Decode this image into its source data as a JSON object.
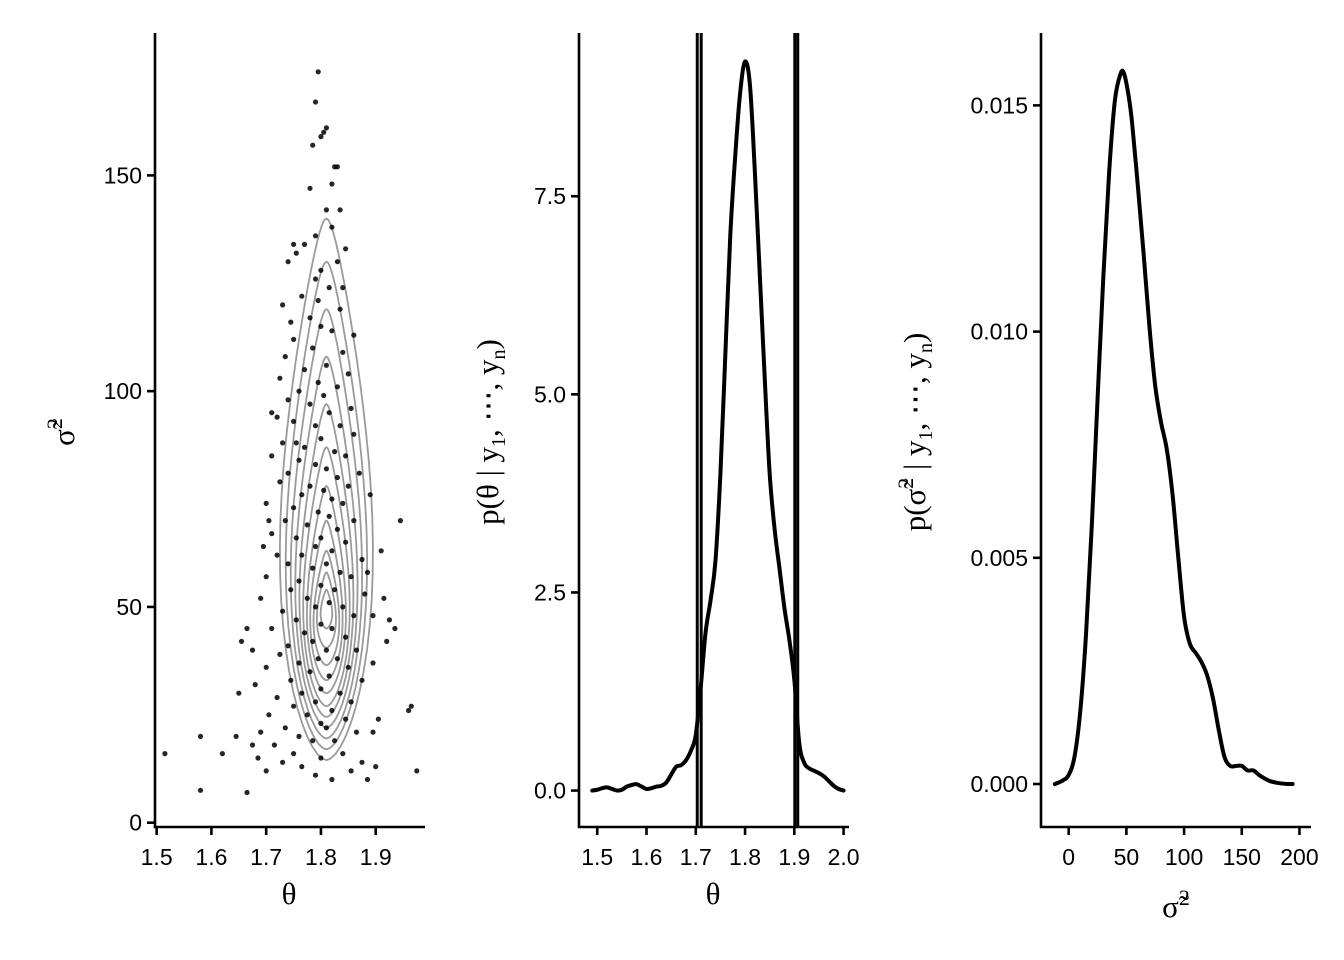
{
  "colors": {
    "points": "#000000",
    "contours": "#9a9a9a",
    "density": "#000000",
    "interval_lines": "#000000"
  },
  "chart_data": [
    {
      "type": "scatter",
      "xlabel": "θ",
      "ylabel": "σ̃²",
      "xlim": [
        1.497,
        1.99
      ],
      "ylim": [
        -1,
        183
      ],
      "xticks": [
        1.5,
        1.6,
        1.7,
        1.8,
        1.9
      ],
      "xtick_labels": [
        "1.5",
        "1.6",
        "1.7",
        "1.8",
        "1.9"
      ],
      "yticks": [
        0,
        50,
        100,
        150
      ],
      "ytick_labels": [
        "0",
        "50",
        "100",
        "150"
      ],
      "grid": false,
      "overlay": "2D density contours (grey)",
      "contour_rings": [
        {
          "cx": 1.81,
          "yb": 14.5,
          "yt": 140,
          "w": 0.112
        },
        {
          "cx": 1.81,
          "yb": 17,
          "yt": 130,
          "w": 0.098
        },
        {
          "cx": 1.81,
          "yb": 19.5,
          "yt": 119,
          "w": 0.086
        },
        {
          "cx": 1.81,
          "yb": 22,
          "yt": 108,
          "w": 0.075
        },
        {
          "cx": 1.81,
          "yb": 24.5,
          "yt": 97,
          "w": 0.065
        },
        {
          "cx": 1.81,
          "yb": 27,
          "yt": 87,
          "w": 0.056
        },
        {
          "cx": 1.81,
          "yb": 30,
          "yt": 78,
          "w": 0.047
        },
        {
          "cx": 1.81,
          "yb": 33,
          "yt": 70,
          "w": 0.039
        },
        {
          "cx": 1.81,
          "yb": 36.5,
          "yt": 63,
          "w": 0.031
        },
        {
          "cx": 1.81,
          "yb": 40.5,
          "yt": 58,
          "w": 0.023
        },
        {
          "cx": 1.81,
          "yb": 45,
          "yt": 54,
          "w": 0.014
        }
      ],
      "points": [
        [
          1.795,
          174
        ],
        [
          1.79,
          167
        ],
        [
          1.81,
          161
        ],
        [
          1.805,
          160
        ],
        [
          1.8,
          159
        ],
        [
          1.785,
          157
        ],
        [
          1.83,
          152
        ],
        [
          1.825,
          152
        ],
        [
          1.82,
          148
        ],
        [
          1.78,
          147
        ],
        [
          1.835,
          142
        ],
        [
          1.81,
          142
        ],
        [
          1.82,
          138
        ],
        [
          1.79,
          136
        ],
        [
          1.77,
          134
        ],
        [
          1.75,
          134
        ],
        [
          1.845,
          133
        ],
        [
          1.755,
          132
        ],
        [
          1.74,
          130
        ],
        [
          1.83,
          130
        ],
        [
          1.8,
          128
        ],
        [
          1.79,
          126
        ],
        [
          1.815,
          124
        ],
        [
          1.84,
          124
        ],
        [
          1.765,
          122
        ],
        [
          1.795,
          121
        ],
        [
          1.73,
          120
        ],
        [
          1.835,
          119
        ],
        [
          1.78,
          117
        ],
        [
          1.745,
          116
        ],
        [
          1.8,
          115
        ],
        [
          1.82,
          114
        ],
        [
          1.86,
          113
        ],
        [
          1.75,
          112
        ],
        [
          1.785,
          110
        ],
        [
          1.84,
          109
        ],
        [
          1.735,
          108
        ],
        [
          1.81,
          106
        ],
        [
          1.77,
          105
        ],
        [
          1.85,
          104
        ],
        [
          1.725,
          103
        ],
        [
          1.795,
          102
        ],
        [
          1.83,
          101
        ],
        [
          1.76,
          100
        ],
        [
          1.805,
          99
        ],
        [
          1.74,
          98
        ],
        [
          1.78,
          97
        ],
        [
          1.855,
          96
        ],
        [
          1.815,
          95
        ],
        [
          1.72,
          94
        ],
        [
          1.75,
          93
        ],
        [
          1.79,
          92
        ],
        [
          1.835,
          92
        ],
        [
          1.86,
          90
        ],
        [
          1.8,
          89
        ],
        [
          1.73,
          88
        ],
        [
          1.77,
          87
        ],
        [
          1.825,
          86
        ],
        [
          1.71,
          85
        ],
        [
          1.845,
          85
        ],
        [
          1.76,
          84
        ],
        [
          1.79,
          83
        ],
        [
          1.81,
          82
        ],
        [
          1.74,
          81
        ],
        [
          1.87,
          81
        ],
        [
          1.83,
          80
        ],
        [
          1.725,
          79
        ],
        [
          1.78,
          78
        ],
        [
          1.85,
          78
        ],
        [
          1.805,
          77
        ],
        [
          1.765,
          76
        ],
        [
          1.82,
          75
        ],
        [
          1.7,
          74
        ],
        [
          1.84,
          74
        ],
        [
          1.75,
          73
        ],
        [
          1.795,
          72
        ],
        [
          1.815,
          71
        ],
        [
          1.735,
          70
        ],
        [
          1.86,
          70
        ],
        [
          1.945,
          70
        ],
        [
          1.775,
          69
        ],
        [
          1.83,
          68
        ],
        [
          1.71,
          67
        ],
        [
          1.8,
          66
        ],
        [
          1.755,
          66
        ],
        [
          1.845,
          65
        ],
        [
          1.79,
          64
        ],
        [
          1.82,
          63
        ],
        [
          1.72,
          62
        ],
        [
          1.765,
          62
        ],
        [
          1.875,
          61
        ],
        [
          1.81,
          60
        ],
        [
          1.74,
          60
        ],
        [
          1.785,
          59
        ],
        [
          1.835,
          58
        ],
        [
          1.7,
          57
        ],
        [
          1.855,
          57
        ],
        [
          1.76,
          56
        ],
        [
          1.8,
          55
        ],
        [
          1.825,
          54
        ],
        [
          1.745,
          54
        ],
        [
          1.88,
          53
        ],
        [
          1.775,
          52
        ],
        [
          1.69,
          52
        ],
        [
          1.815,
          51
        ],
        [
          1.79,
          50
        ],
        [
          1.84,
          50
        ],
        [
          1.73,
          49
        ],
        [
          1.86,
          48
        ],
        [
          1.755,
          47
        ],
        [
          1.925,
          47
        ],
        [
          1.8,
          46
        ],
        [
          1.82,
          45
        ],
        [
          1.71,
          45
        ],
        [
          1.77,
          44
        ],
        [
          1.845,
          43
        ],
        [
          1.785,
          42
        ],
        [
          1.655,
          42
        ],
        [
          1.74,
          41
        ],
        [
          1.81,
          40
        ],
        [
          1.865,
          40
        ],
        [
          1.725,
          39
        ],
        [
          1.795,
          38
        ],
        [
          1.83,
          38
        ],
        [
          1.76,
          37
        ],
        [
          1.7,
          36
        ],
        [
          1.85,
          36
        ],
        [
          1.78,
          35
        ],
        [
          1.815,
          34
        ],
        [
          1.745,
          33
        ],
        [
          1.875,
          33
        ],
        [
          1.68,
          32
        ],
        [
          1.8,
          31
        ],
        [
          1.765,
          30
        ],
        [
          1.835,
          30
        ],
        [
          1.72,
          29
        ],
        [
          1.79,
          28
        ],
        [
          1.855,
          28
        ],
        [
          1.75,
          27
        ],
        [
          1.82,
          26
        ],
        [
          1.965,
          27
        ],
        [
          1.705,
          25
        ],
        [
          1.775,
          25
        ],
        [
          1.845,
          24
        ],
        [
          1.8,
          23
        ],
        [
          1.735,
          22
        ],
        [
          1.81,
          22
        ],
        [
          1.69,
          21
        ],
        [
          1.865,
          21
        ],
        [
          1.76,
          20
        ],
        [
          1.58,
          20
        ],
        [
          1.785,
          19
        ],
        [
          1.825,
          19
        ],
        [
          1.645,
          20
        ],
        [
          1.715,
          18
        ],
        [
          1.675,
          18
        ],
        [
          1.62,
          16
        ],
        [
          1.515,
          16
        ],
        [
          1.75,
          16
        ],
        [
          1.84,
          16
        ],
        [
          1.685,
          15
        ],
        [
          1.8,
          15
        ],
        [
          1.73,
          14
        ],
        [
          1.875,
          14
        ],
        [
          1.765,
          13
        ],
        [
          1.9,
          13
        ],
        [
          1.7,
          12
        ],
        [
          1.855,
          12
        ],
        [
          1.975,
          12
        ],
        [
          1.79,
          11
        ],
        [
          1.82,
          10
        ],
        [
          1.885,
          10
        ],
        [
          1.58,
          7.5
        ],
        [
          1.665,
          7
        ],
        [
          1.895,
          21
        ],
        [
          1.905,
          24
        ],
        [
          1.915,
          52
        ],
        [
          1.935,
          45
        ],
        [
          1.96,
          26
        ],
        [
          1.895,
          37
        ],
        [
          1.91,
          63
        ],
        [
          1.89,
          76
        ],
        [
          1.92,
          42
        ],
        [
          1.65,
          30
        ],
        [
          1.675,
          40
        ],
        [
          1.665,
          45
        ],
        [
          1.695,
          64
        ],
        [
          1.71,
          95
        ],
        [
          1.705,
          70
        ],
        [
          1.755,
          88
        ],
        [
          1.885,
          58
        ],
        [
          1.895,
          48
        ]
      ]
    },
    {
      "type": "line",
      "xlabel": "θ",
      "ylabel": "p(θ | y₁, ⋯, yₙ)",
      "xlim": [
        1.463,
        2.011
      ],
      "ylim": [
        -0.46,
        9.56
      ],
      "xticks": [
        1.5,
        1.6,
        1.7,
        1.8,
        1.9,
        2.0
      ],
      "xtick_labels": [
        "1.5",
        "1.6",
        "1.7",
        "1.8",
        "1.9",
        "2.0"
      ],
      "yticks": [
        0,
        2.5,
        5,
        7.5
      ],
      "ytick_labels": [
        "0.0",
        "2.5",
        "5.0",
        "7.5"
      ],
      "grid": false,
      "vlines": [
        1.703,
        1.711,
        1.901,
        1.907
      ],
      "series": [
        {
          "x": [
            1.49,
            1.5,
            1.51,
            1.52,
            1.53,
            1.54,
            1.55,
            1.56,
            1.57,
            1.58,
            1.59,
            1.6,
            1.61,
            1.62,
            1.63,
            1.64,
            1.65,
            1.66,
            1.67,
            1.68,
            1.69,
            1.7,
            1.71,
            1.72,
            1.73,
            1.74,
            1.75,
            1.76,
            1.77,
            1.78,
            1.79,
            1.8,
            1.81,
            1.82,
            1.83,
            1.84,
            1.85,
            1.86,
            1.87,
            1.88,
            1.89,
            1.9,
            1.91,
            1.92,
            1.93,
            1.94,
            1.95,
            1.96,
            1.97,
            1.98,
            1.99,
            2.0
          ],
          "y": [
            0.0,
            0.01,
            0.03,
            0.04,
            0.02,
            0.0,
            0.01,
            0.05,
            0.07,
            0.08,
            0.05,
            0.02,
            0.03,
            0.05,
            0.06,
            0.1,
            0.2,
            0.3,
            0.32,
            0.38,
            0.5,
            0.7,
            1.3,
            2.0,
            2.4,
            2.9,
            4.0,
            5.5,
            7.0,
            8.0,
            8.8,
            9.2,
            8.9,
            7.8,
            6.5,
            5.2,
            4.0,
            3.3,
            2.8,
            2.3,
            1.9,
            1.4,
            0.6,
            0.35,
            0.28,
            0.25,
            0.22,
            0.18,
            0.12,
            0.06,
            0.02,
            0.0
          ]
        }
      ]
    },
    {
      "type": "line",
      "xlabel": "σ̃²",
      "ylabel": "p(σ̃² | y₁, ⋯, yₙ)",
      "xlim": [
        -24,
        210
      ],
      "ylim": [
        -0.00095,
        0.0166
      ],
      "xticks": [
        0,
        50,
        100,
        150,
        200
      ],
      "xtick_labels": [
        "0",
        "50",
        "100",
        "150",
        "200"
      ],
      "yticks": [
        0,
        0.005,
        0.01,
        0.015
      ],
      "ytick_labels": [
        "0.000",
        "0.005",
        "0.010",
        "0.015"
      ],
      "grid": false,
      "series": [
        {
          "x": [
            -12,
            -5,
            0,
            5,
            10,
            15,
            20,
            25,
            30,
            35,
            40,
            45,
            48,
            52,
            55,
            60,
            65,
            70,
            75,
            80,
            85,
            90,
            95,
            100,
            105,
            110,
            115,
            120,
            125,
            130,
            135,
            140,
            145,
            150,
            155,
            160,
            165,
            170,
            175,
            180,
            185,
            190,
            194
          ],
          "y": [
            0.0,
            8e-05,
            0.0002,
            0.0006,
            0.0016,
            0.0033,
            0.0057,
            0.0085,
            0.0112,
            0.0135,
            0.0151,
            0.0157,
            0.0157,
            0.0152,
            0.0146,
            0.0132,
            0.0117,
            0.0101,
            0.0088,
            0.008,
            0.0074,
            0.0064,
            0.005,
            0.0037,
            0.0031,
            0.0029,
            0.0027,
            0.0024,
            0.0019,
            0.0012,
            0.0006,
            0.0004,
            0.0004,
            0.0004,
            0.0003,
            0.0003,
            0.0002,
            0.00012,
            6e-05,
            3e-05,
            1e-05,
            0.0,
            0.0
          ]
        }
      ]
    }
  ]
}
